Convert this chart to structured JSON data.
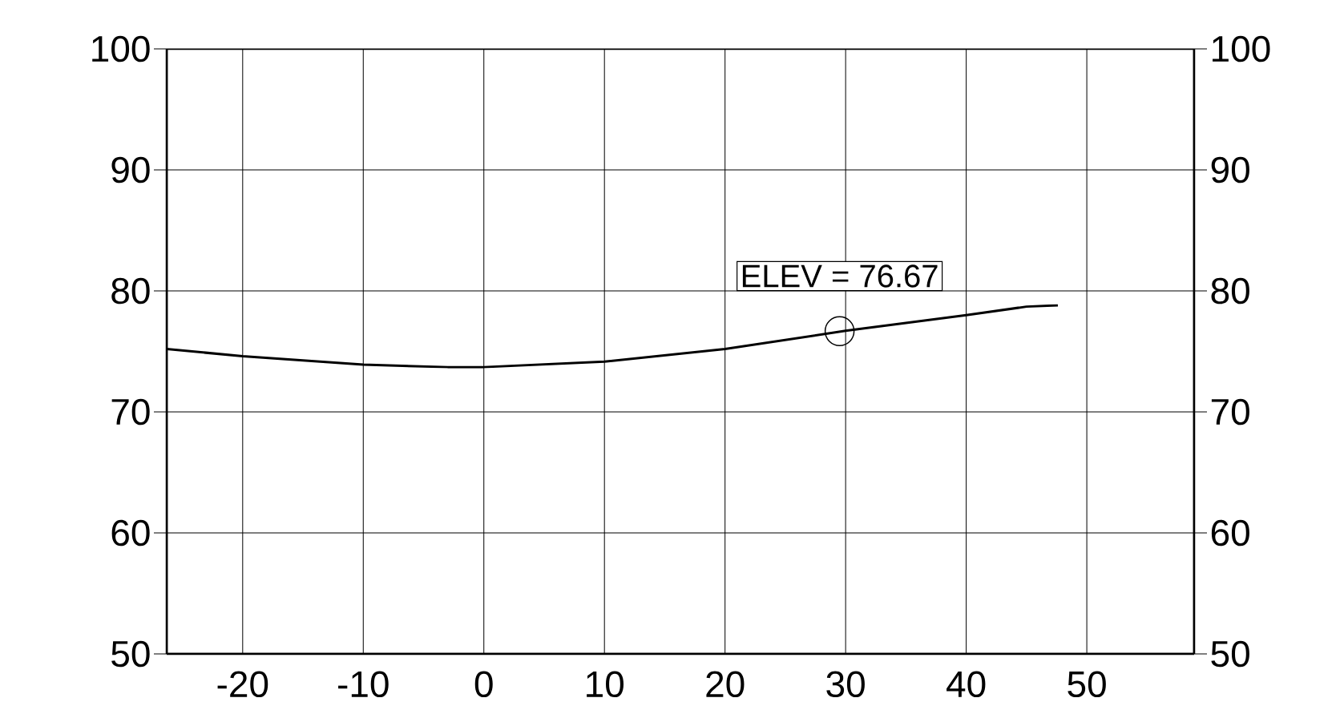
{
  "chart_data": {
    "type": "line",
    "x": [
      -26.3,
      -20,
      -10,
      -3,
      0,
      10,
      20,
      30,
      40,
      45,
      47.6
    ],
    "series": [
      {
        "color": "#000000",
        "values": [
          75.2,
          74.6,
          73.9,
          73.7,
          73.7,
          74.15,
          75.2,
          76.7,
          78.0,
          78.7,
          78.8
        ]
      }
    ],
    "xlim": [
      -26.3,
      58.9
    ],
    "xticks": [
      -20,
      -10,
      0,
      10,
      20,
      30,
      40,
      50
    ],
    "ylim": [
      50,
      100
    ],
    "yticks": [
      50,
      60,
      70,
      80,
      90,
      100
    ],
    "y2lim": [
      50,
      100
    ],
    "y2ticks": [
      50,
      60,
      70,
      80,
      90,
      100
    ],
    "grid": true,
    "annotations": [
      {
        "text": "ELEV = 76.67",
        "x": 29.5,
        "y": 76.67
      }
    ]
  }
}
